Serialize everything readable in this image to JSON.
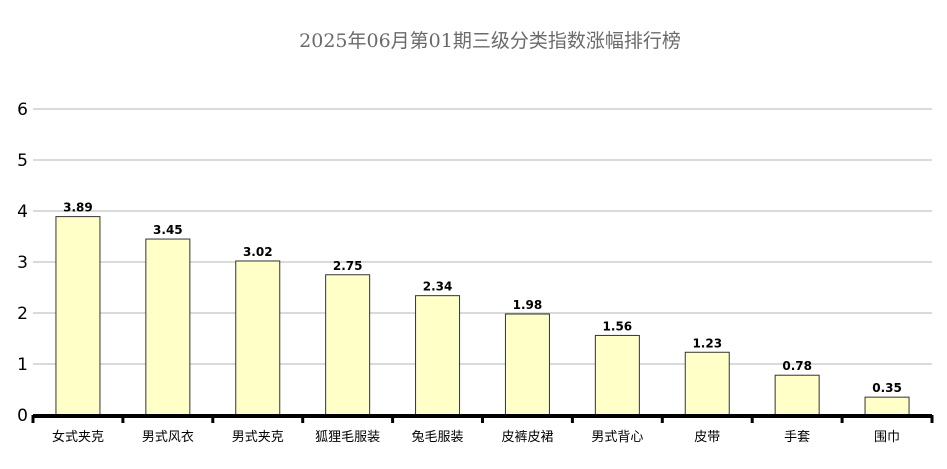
{
  "chart_data": {
    "type": "bar",
    "title": "2025年06月第01期三级分类指数涨幅排行榜",
    "xlabel": "",
    "ylabel": "",
    "categories": [
      "女式夹克",
      "男式风衣",
      "男式夹克",
      "狐狸毛服装",
      "兔毛服装",
      "皮裤皮裙",
      "男式背心",
      "皮带",
      "手套",
      "围巾"
    ],
    "values": [
      3.89,
      3.45,
      3.02,
      2.75,
      2.34,
      1.98,
      1.56,
      1.23,
      0.78,
      0.35
    ],
    "data_labels": [
      "3.89",
      "3.45",
      "3.02",
      "2.75",
      "2.34",
      "1.98",
      "1.56",
      "1.23",
      "0.78",
      "0.35"
    ],
    "ylim": [
      0,
      6
    ],
    "yticks": [
      "0",
      "1",
      "2",
      "3",
      "4",
      "5",
      "6"
    ],
    "grid": true,
    "legend": "none",
    "colors": {
      "bar_fill": "#ffffc8",
      "bar_stroke": "#333333",
      "grid": "#b4b4b4",
      "axis": "#000000",
      "title": "#6a6a6a"
    }
  }
}
